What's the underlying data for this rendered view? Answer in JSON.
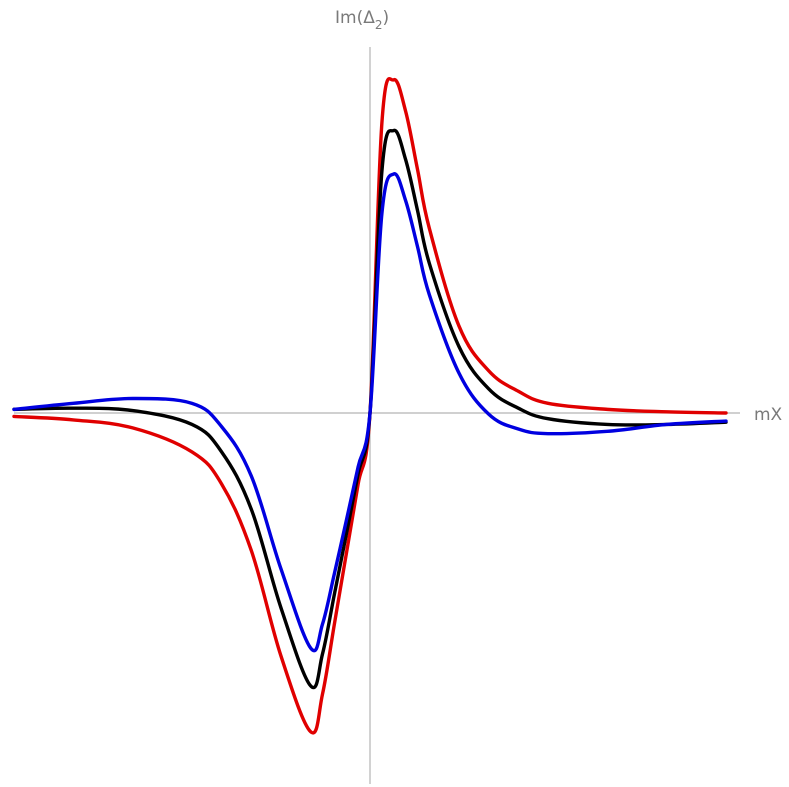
{
  "chart_data": {
    "type": "line",
    "title": "",
    "xlabel": "mX",
    "ylabel": {
      "main": "Im(Δ",
      "sub": "2",
      "close": ")"
    },
    "grid": false,
    "legend": "none",
    "x_range": [
      -3.0,
      3.0
    ],
    "y_range": [
      -3.0,
      2.8
    ],
    "series": [
      {
        "color": "#e00000",
        "x": [
          -3.0,
          -2.5,
          -2.0,
          -1.5,
          -1.25,
          -1.0,
          -0.75,
          -0.5,
          -0.4,
          -0.3,
          -0.2,
          -0.1,
          0.0,
          0.1,
          0.2,
          0.3,
          0.4,
          0.5,
          0.75,
          1.0,
          1.25,
          1.5,
          2.0,
          2.5,
          3.0
        ],
        "y": [
          -0.03,
          -0.06,
          -0.13,
          -0.34,
          -0.62,
          -1.2,
          -2.12,
          -2.78,
          -2.45,
          -1.84,
          -1.23,
          -0.62,
          0.0,
          2.4,
          2.76,
          2.5,
          2.02,
          1.53,
          0.72,
          0.35,
          0.18,
          0.08,
          0.03,
          0.01,
          0.0
        ]
      },
      {
        "color": "#000000",
        "x": [
          -3.0,
          -2.5,
          -2.0,
          -1.5,
          -1.25,
          -1.0,
          -0.75,
          -0.5,
          -0.4,
          -0.3,
          -0.2,
          -0.1,
          0.0,
          0.1,
          0.2,
          0.3,
          0.4,
          0.5,
          0.75,
          1.0,
          1.25,
          1.5,
          2.0,
          2.5,
          3.0
        ],
        "y": [
          0.03,
          0.04,
          0.02,
          -0.1,
          -0.34,
          -0.84,
          -1.7,
          -2.38,
          -2.1,
          -1.58,
          -1.06,
          -0.53,
          0.0,
          2.0,
          2.34,
          2.1,
          1.68,
          1.24,
          0.55,
          0.2,
          0.04,
          -0.05,
          -0.1,
          -0.1,
          -0.08
        ]
      },
      {
        "color": "#0000e0",
        "x": [
          -3.0,
          -2.5,
          -2.0,
          -1.5,
          -1.25,
          -1.0,
          -0.75,
          -0.5,
          -0.4,
          -0.3,
          -0.2,
          -0.1,
          0.0,
          0.1,
          0.2,
          0.3,
          0.4,
          0.5,
          0.75,
          1.0,
          1.25,
          1.5,
          2.0,
          2.5,
          3.0
        ],
        "y": [
          0.03,
          0.08,
          0.12,
          0.08,
          -0.12,
          -0.55,
          -1.36,
          -2.05,
          -1.84,
          -1.4,
          -0.94,
          -0.47,
          0.0,
          1.65,
          1.98,
          1.76,
          1.38,
          0.98,
          0.33,
          -0.01,
          -0.14,
          -0.18,
          -0.16,
          -0.1,
          -0.07
        ]
      }
    ]
  }
}
